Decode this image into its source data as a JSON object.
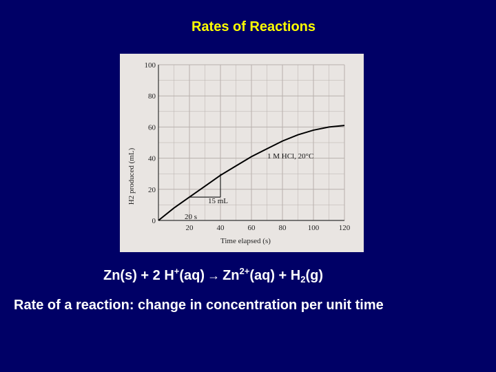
{
  "slide": {
    "title": "Rates of Reactions",
    "equation": {
      "lhs1": "Zn(s) + 2 H",
      "sup1": "+",
      "lhs2": "(aq)",
      "arrow": "→",
      "rhs1": "Zn",
      "sup2": "2+",
      "rhs2": "(aq) + H",
      "sub1": "2",
      "rhs3": "(g)"
    },
    "definition": "Rate of a reaction: change in concentration per unit time"
  },
  "colors": {
    "background": "#000066",
    "title": "#ffff00",
    "text": "#ffffff",
    "figure_paper": "#e9e5e2",
    "curve": "#000000"
  },
  "chart_data": {
    "type": "line",
    "title": "",
    "xlabel": "Time elapsed (s)",
    "ylabel": "H2 produced (mL)",
    "xlim": [
      0,
      120
    ],
    "ylim": [
      0,
      100
    ],
    "x_ticks": [
      20,
      40,
      60,
      80,
      100,
      120
    ],
    "y_ticks": [
      0,
      20,
      40,
      60,
      80,
      100
    ],
    "grid": true,
    "series": [
      {
        "name": "1 M HCl, 20°C",
        "x": [
          0,
          10,
          20,
          30,
          40,
          50,
          60,
          70,
          80,
          90,
          100,
          110,
          120
        ],
        "y": [
          0,
          8,
          15,
          22,
          29,
          35,
          41,
          46,
          51,
          55,
          58,
          60,
          61
        ]
      }
    ],
    "annotations": {
      "series_label": "1 M HCl, 20°C",
      "rise_label": "15 mL",
      "run_label": "20 s",
      "triangle": {
        "x0": 20,
        "x1": 40,
        "y0": 15,
        "y1": 30
      }
    }
  }
}
